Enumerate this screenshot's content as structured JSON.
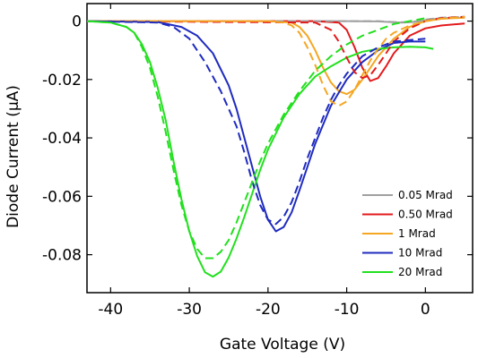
{
  "chart_data": {
    "type": "line",
    "xlabel": "Gate Voltage (V)",
    "ylabel": "Diode Current (μA)",
    "xlim": [
      -43,
      6
    ],
    "ylim": [
      -0.093,
      0.006
    ],
    "x_ticks": [
      -40,
      -30,
      -20,
      -10,
      0
    ],
    "y_ticks": [
      0,
      -0.02,
      -0.04,
      -0.06,
      -0.08
    ],
    "x_tick_labels": [
      "-40",
      "-30",
      "-20",
      "-10",
      "0"
    ],
    "y_tick_labels": [
      "0",
      "-0.02",
      "-0.04",
      "-0.06",
      "-0.08"
    ],
    "legend_placement": "bottom-right",
    "line_styles": [
      "solid",
      "dashed"
    ],
    "series": [
      {
        "name": "0.05 Mrad",
        "color": "#a0a0a0",
        "legend": true,
        "x": [
          -43,
          -10,
          -6,
          -4,
          -3,
          -1.5,
          0,
          2,
          5
        ],
        "y": [
          0,
          0,
          -0.0001,
          -0.0004,
          -0.0005,
          -0.0003,
          0.0003,
          0.001,
          0.0012
        ]
      },
      {
        "name": "0.50 Mrad",
        "color": "#e31a1c",
        "legend": true,
        "x": [
          -43,
          -14,
          -11,
          -10,
          -9,
          -8,
          -7,
          -6,
          -5,
          -4,
          -2,
          0,
          2,
          5
        ],
        "y": [
          0,
          0,
          -0.0005,
          -0.003,
          -0.009,
          -0.016,
          -0.0205,
          -0.0195,
          -0.0155,
          -0.011,
          -0.005,
          -0.0025,
          -0.0015,
          -0.0008
        ]
      },
      {
        "name": "1 Mrad",
        "color": "#f5a623",
        "legend": true,
        "x": [
          -43,
          -20,
          -17,
          -16,
          -15,
          -14,
          -13,
          -12,
          -11,
          -10,
          -9,
          -8,
          -7,
          -6,
          -4,
          -2,
          0,
          2,
          5
        ],
        "y": [
          0,
          0,
          -0.0005,
          -0.002,
          -0.005,
          -0.01,
          -0.016,
          -0.021,
          -0.024,
          -0.025,
          -0.0235,
          -0.02,
          -0.016,
          -0.012,
          -0.006,
          -0.002,
          0,
          0.0008,
          0.0012
        ]
      },
      {
        "name": "10 Mrad",
        "color": "#1f2bbf",
        "legend": true,
        "x": [
          -43,
          -34,
          -31,
          -29,
          -27,
          -25,
          -24,
          -23,
          -22,
          -21,
          -20,
          -19,
          -18,
          -17,
          -16,
          -15,
          -14,
          -12,
          -10,
          -8,
          -6,
          -4,
          -2,
          0
        ],
        "y": [
          0,
          -0.0003,
          -0.002,
          -0.005,
          -0.011,
          -0.022,
          -0.03,
          -0.04,
          -0.05,
          -0.06,
          -0.068,
          -0.072,
          -0.0705,
          -0.0655,
          -0.058,
          -0.05,
          -0.042,
          -0.029,
          -0.02,
          -0.014,
          -0.01,
          -0.0075,
          -0.007,
          -0.007
        ]
      },
      {
        "name": "20 Mrad",
        "color": "#22e01e",
        "legend": true,
        "x": [
          -43,
          -40,
          -38,
          -37,
          -36,
          -35,
          -34,
          -33,
          -32,
          -31,
          -30,
          -29,
          -28,
          -27,
          -26,
          -25,
          -24,
          -23,
          -22,
          -21,
          -20,
          -18,
          -16,
          -14,
          -12,
          -10,
          -8,
          -6,
          -4,
          -2,
          0,
          1
        ],
        "y": [
          0,
          -0.0005,
          -0.002,
          -0.004,
          -0.008,
          -0.014,
          -0.023,
          -0.034,
          -0.048,
          -0.061,
          -0.072,
          -0.0805,
          -0.086,
          -0.0875,
          -0.0858,
          -0.081,
          -0.0745,
          -0.067,
          -0.059,
          -0.051,
          -0.044,
          -0.033,
          -0.025,
          -0.019,
          -0.0155,
          -0.0125,
          -0.0105,
          -0.0095,
          -0.009,
          -0.0088,
          -0.009,
          -0.0095
        ]
      },
      {
        "name": "",
        "color": "#a0a0a0",
        "legend": false,
        "dashed": true,
        "x": [
          -43,
          -6,
          -4,
          -2,
          0,
          2,
          5
        ],
        "y": [
          0,
          0,
          -0.0003,
          -0.0004,
          0.0005,
          0.0012,
          0.0015
        ]
      },
      {
        "name": "",
        "color": "#e31a1c",
        "legend": false,
        "dashed": true,
        "x": [
          -43,
          -14,
          -12,
          -11,
          -10,
          -9,
          -8,
          -7,
          -6,
          -5,
          -4,
          -2,
          0,
          2,
          5
        ],
        "y": [
          0,
          -0.0005,
          -0.003,
          -0.007,
          -0.0125,
          -0.0175,
          -0.0195,
          -0.0185,
          -0.015,
          -0.011,
          -0.007,
          -0.0025,
          0,
          0.001,
          0.0015
        ]
      },
      {
        "name": "",
        "color": "#f5a623",
        "legend": false,
        "dashed": true,
        "x": [
          -43,
          -20,
          -18,
          -17,
          -16,
          -15,
          -14,
          -13,
          -12,
          -11,
          -10,
          -9,
          -8,
          -7,
          -6,
          -5,
          -4,
          -2,
          0,
          2,
          5
        ],
        "y": [
          0,
          0,
          -0.0005,
          -0.0015,
          -0.004,
          -0.009,
          -0.015,
          -0.022,
          -0.0275,
          -0.029,
          -0.0275,
          -0.0235,
          -0.0185,
          -0.0135,
          -0.0095,
          -0.006,
          -0.004,
          -0.0015,
          0,
          0.0008,
          0.0015
        ]
      },
      {
        "name": "",
        "color": "#1f2bbf",
        "legend": false,
        "dashed": true,
        "x": [
          -43,
          -34,
          -32,
          -30,
          -28,
          -26,
          -24,
          -23,
          -22,
          -21,
          -20,
          -19,
          -18,
          -17,
          -16,
          -15,
          -14,
          -13,
          -12,
          -11,
          -10,
          -8,
          -6,
          -4,
          -2,
          0
        ],
        "y": [
          0,
          -0.0005,
          -0.002,
          -0.006,
          -0.014,
          -0.024,
          -0.036,
          -0.045,
          -0.055,
          -0.063,
          -0.068,
          -0.0695,
          -0.067,
          -0.062,
          -0.055,
          -0.047,
          -0.04,
          -0.033,
          -0.027,
          -0.022,
          -0.018,
          -0.012,
          -0.009,
          -0.007,
          -0.0065,
          -0.006
        ]
      },
      {
        "name": "",
        "color": "#22e01e",
        "legend": false,
        "dashed": true,
        "x": [
          -43,
          -40,
          -38,
          -37,
          -36,
          -35,
          -34,
          -33,
          -32,
          -31,
          -30,
          -29,
          -28,
          -27,
          -26,
          -25,
          -24,
          -23,
          -22,
          -21,
          -20,
          -18,
          -16,
          -14,
          -12,
          -10,
          -8,
          -6,
          -4,
          -2,
          0
        ],
        "y": [
          0,
          -0.0005,
          -0.002,
          -0.004,
          -0.009,
          -0.016,
          -0.026,
          -0.038,
          -0.051,
          -0.063,
          -0.072,
          -0.078,
          -0.0812,
          -0.0812,
          -0.079,
          -0.075,
          -0.069,
          -0.062,
          -0.055,
          -0.048,
          -0.042,
          -0.032,
          -0.024,
          -0.017,
          -0.012,
          -0.008,
          -0.005,
          -0.003,
          -0.001,
          0,
          0.001
        ]
      }
    ]
  }
}
